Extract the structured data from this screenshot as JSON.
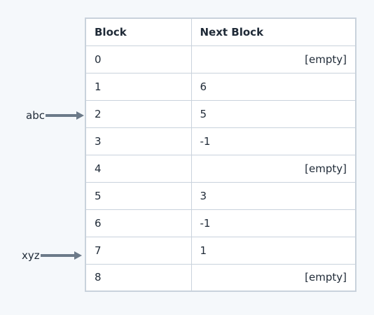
{
  "table": {
    "headers": [
      "Block",
      "Next Block"
    ],
    "rows": [
      {
        "block": "0",
        "next": "[empty]"
      },
      {
        "block": "1",
        "next": "6"
      },
      {
        "block": "2",
        "next": "5"
      },
      {
        "block": "3",
        "next": "-1"
      },
      {
        "block": "4",
        "next": "[empty]"
      },
      {
        "block": "5",
        "next": "3"
      },
      {
        "block": "6",
        "next": "-1"
      },
      {
        "block": "7",
        "next": "1"
      },
      {
        "block": "8",
        "next": "[empty]"
      }
    ]
  },
  "pointers": [
    {
      "label": "abc",
      "target_block": "2"
    },
    {
      "label": "xyz",
      "target_block": "7"
    }
  ],
  "colors": {
    "arrow": "#6c7a89",
    "border": "#c9d2dc",
    "background": "#f5f8fb"
  }
}
